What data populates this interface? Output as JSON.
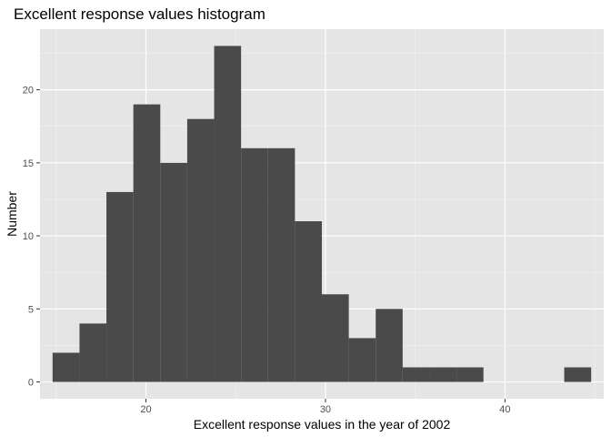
{
  "chart_data": {
    "type": "bar",
    "title": "Excellent response values histogram",
    "xlabel": "Excellent response values in the year of 2002",
    "ylabel": "Number",
    "bins": [
      {
        "x0": 14.8,
        "x1": 16.3,
        "count": 2
      },
      {
        "x0": 16.3,
        "x1": 17.8,
        "count": 4
      },
      {
        "x0": 17.8,
        "x1": 19.3,
        "count": 13
      },
      {
        "x0": 19.3,
        "x1": 20.8,
        "count": 19
      },
      {
        "x0": 20.8,
        "x1": 22.3,
        "count": 15
      },
      {
        "x0": 22.3,
        "x1": 23.8,
        "count": 18
      },
      {
        "x0": 23.8,
        "x1": 25.3,
        "count": 23
      },
      {
        "x0": 25.3,
        "x1": 26.8,
        "count": 16
      },
      {
        "x0": 26.8,
        "x1": 28.3,
        "count": 16
      },
      {
        "x0": 28.3,
        "x1": 29.8,
        "count": 11
      },
      {
        "x0": 29.8,
        "x1": 31.3,
        "count": 6
      },
      {
        "x0": 31.3,
        "x1": 32.8,
        "count": 3
      },
      {
        "x0": 32.8,
        "x1": 34.3,
        "count": 5
      },
      {
        "x0": 34.3,
        "x1": 35.8,
        "count": 1
      },
      {
        "x0": 35.8,
        "x1": 37.3,
        "count": 1
      },
      {
        "x0": 37.3,
        "x1": 38.8,
        "count": 1
      },
      {
        "x0": 43.3,
        "x1": 44.8,
        "count": 1
      }
    ],
    "xlim": [
      14.1,
      45.5
    ],
    "ylim": [
      -1.15,
      24.15
    ],
    "x_ticks": [
      20,
      30,
      40
    ],
    "y_ticks": [
      0,
      5,
      10,
      15,
      20
    ],
    "grid": true,
    "colors": {
      "bar": "#4a4a4a",
      "panel": "#e5e5e5",
      "grid_major": "#ffffff",
      "grid_minor": "#f2f2f2",
      "tick": "#333333"
    }
  }
}
